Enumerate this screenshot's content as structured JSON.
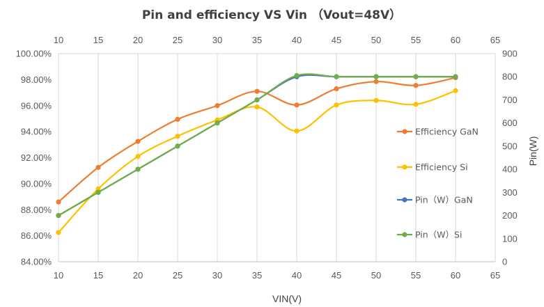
{
  "chart_data": {
    "type": "line",
    "title": "Pin and efficiency VS Vin （Vout=48V）",
    "xlabel": "VIN(V)",
    "ylabel": "",
    "y2label": "Pin(W)",
    "x_ticks": [
      "10",
      "15",
      "20",
      "25",
      "30",
      "35",
      "40",
      "45",
      "50",
      "55",
      "60",
      "65"
    ],
    "y_ticks": [
      "84.00%",
      "86.00%",
      "88.00%",
      "90.00%",
      "92.00%",
      "94.00%",
      "96.00%",
      "98.00%",
      "100.00%"
    ],
    "y2_ticks": [
      "0",
      "100",
      "200",
      "300",
      "400",
      "500",
      "600",
      "700",
      "800",
      "900"
    ],
    "xlim": [
      10,
      65
    ],
    "ylim": [
      84,
      100
    ],
    "y2lim": [
      0,
      900
    ],
    "grid": "vertical",
    "legend_position": "right",
    "series": [
      {
        "name": "Efficiency GaN",
        "axis": "left",
        "color": "#ED7D31",
        "x": [
          10,
          15,
          20,
          25,
          30,
          35,
          40,
          45,
          50,
          55,
          60
        ],
        "values": [
          88.6,
          91.25,
          93.25,
          94.95,
          96.0,
          97.1,
          96.05,
          97.3,
          97.85,
          97.55,
          98.15
        ]
      },
      {
        "name": "Efficiency Si",
        "axis": "left",
        "color": "#FFC000",
        "x": [
          10,
          15,
          20,
          25,
          30,
          35,
          40,
          45,
          50,
          55,
          60
        ],
        "values": [
          86.25,
          89.6,
          92.1,
          93.65,
          94.9,
          95.9,
          94.05,
          96.05,
          96.4,
          96.1,
          97.15
        ]
      },
      {
        "name": "Pin（W）GaN",
        "axis": "right",
        "color": "#4472C4",
        "x": [
          10,
          15,
          20,
          25,
          30,
          35,
          40,
          45,
          50,
          55,
          60
        ],
        "values": [
          200,
          300,
          400,
          500,
          600,
          700,
          800,
          800,
          800,
          800,
          800
        ]
      },
      {
        "name": "Pin（W）Si",
        "axis": "right",
        "color": "#70AD47",
        "x": [
          10,
          15,
          20,
          25,
          30,
          35,
          40,
          45,
          50,
          55,
          60
        ],
        "values": [
          200,
          300,
          400,
          500,
          600,
          700,
          805,
          800,
          800,
          800,
          800
        ]
      }
    ]
  }
}
